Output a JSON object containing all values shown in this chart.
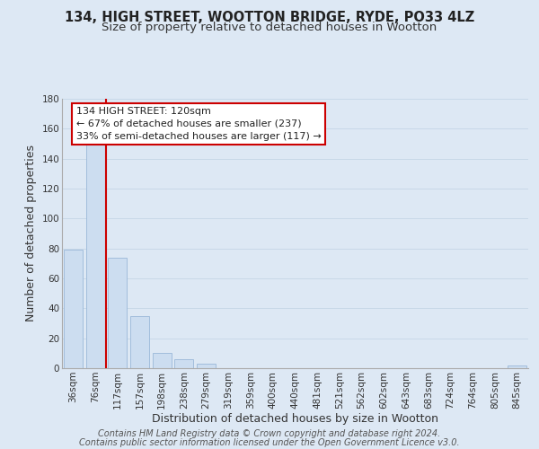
{
  "title": "134, HIGH STREET, WOOTTON BRIDGE, RYDE, PO33 4LZ",
  "subtitle": "Size of property relative to detached houses in Wootton",
  "xlabel": "Distribution of detached houses by size in Wootton",
  "ylabel": "Number of detached properties",
  "footer_line1": "Contains HM Land Registry data © Crown copyright and database right 2024.",
  "footer_line2": "Contains public sector information licensed under the Open Government Licence v3.0.",
  "bin_labels": [
    "36sqm",
    "76sqm",
    "117sqm",
    "157sqm",
    "198sqm",
    "238sqm",
    "279sqm",
    "319sqm",
    "359sqm",
    "400sqm",
    "440sqm",
    "481sqm",
    "521sqm",
    "562sqm",
    "602sqm",
    "643sqm",
    "683sqm",
    "724sqm",
    "764sqm",
    "805sqm",
    "845sqm"
  ],
  "bar_values": [
    79,
    151,
    74,
    35,
    10,
    6,
    3,
    0,
    0,
    0,
    0,
    0,
    0,
    0,
    0,
    0,
    0,
    0,
    0,
    0,
    2
  ],
  "bar_color": "#ccddf0",
  "bar_edge_color": "#9ab8d8",
  "subject_line_color": "#cc0000",
  "subject_line_bin_index": 2,
  "annotation_text": "134 HIGH STREET: 120sqm\n← 67% of detached houses are smaller (237)\n33% of semi-detached houses are larger (117) →",
  "annotation_box_color": "#ffffff",
  "annotation_box_edge_color": "#cc0000",
  "ylim": [
    0,
    180
  ],
  "yticks": [
    0,
    20,
    40,
    60,
    80,
    100,
    120,
    140,
    160,
    180
  ],
  "grid_color": "#c8d8e8",
  "background_color": "#dde8f4",
  "plot_bg_color": "#dde8f4",
  "title_fontsize": 10.5,
  "subtitle_fontsize": 9.5,
  "axis_label_fontsize": 9,
  "tick_fontsize": 7.5,
  "footer_fontsize": 7,
  "annotation_fontsize": 8
}
